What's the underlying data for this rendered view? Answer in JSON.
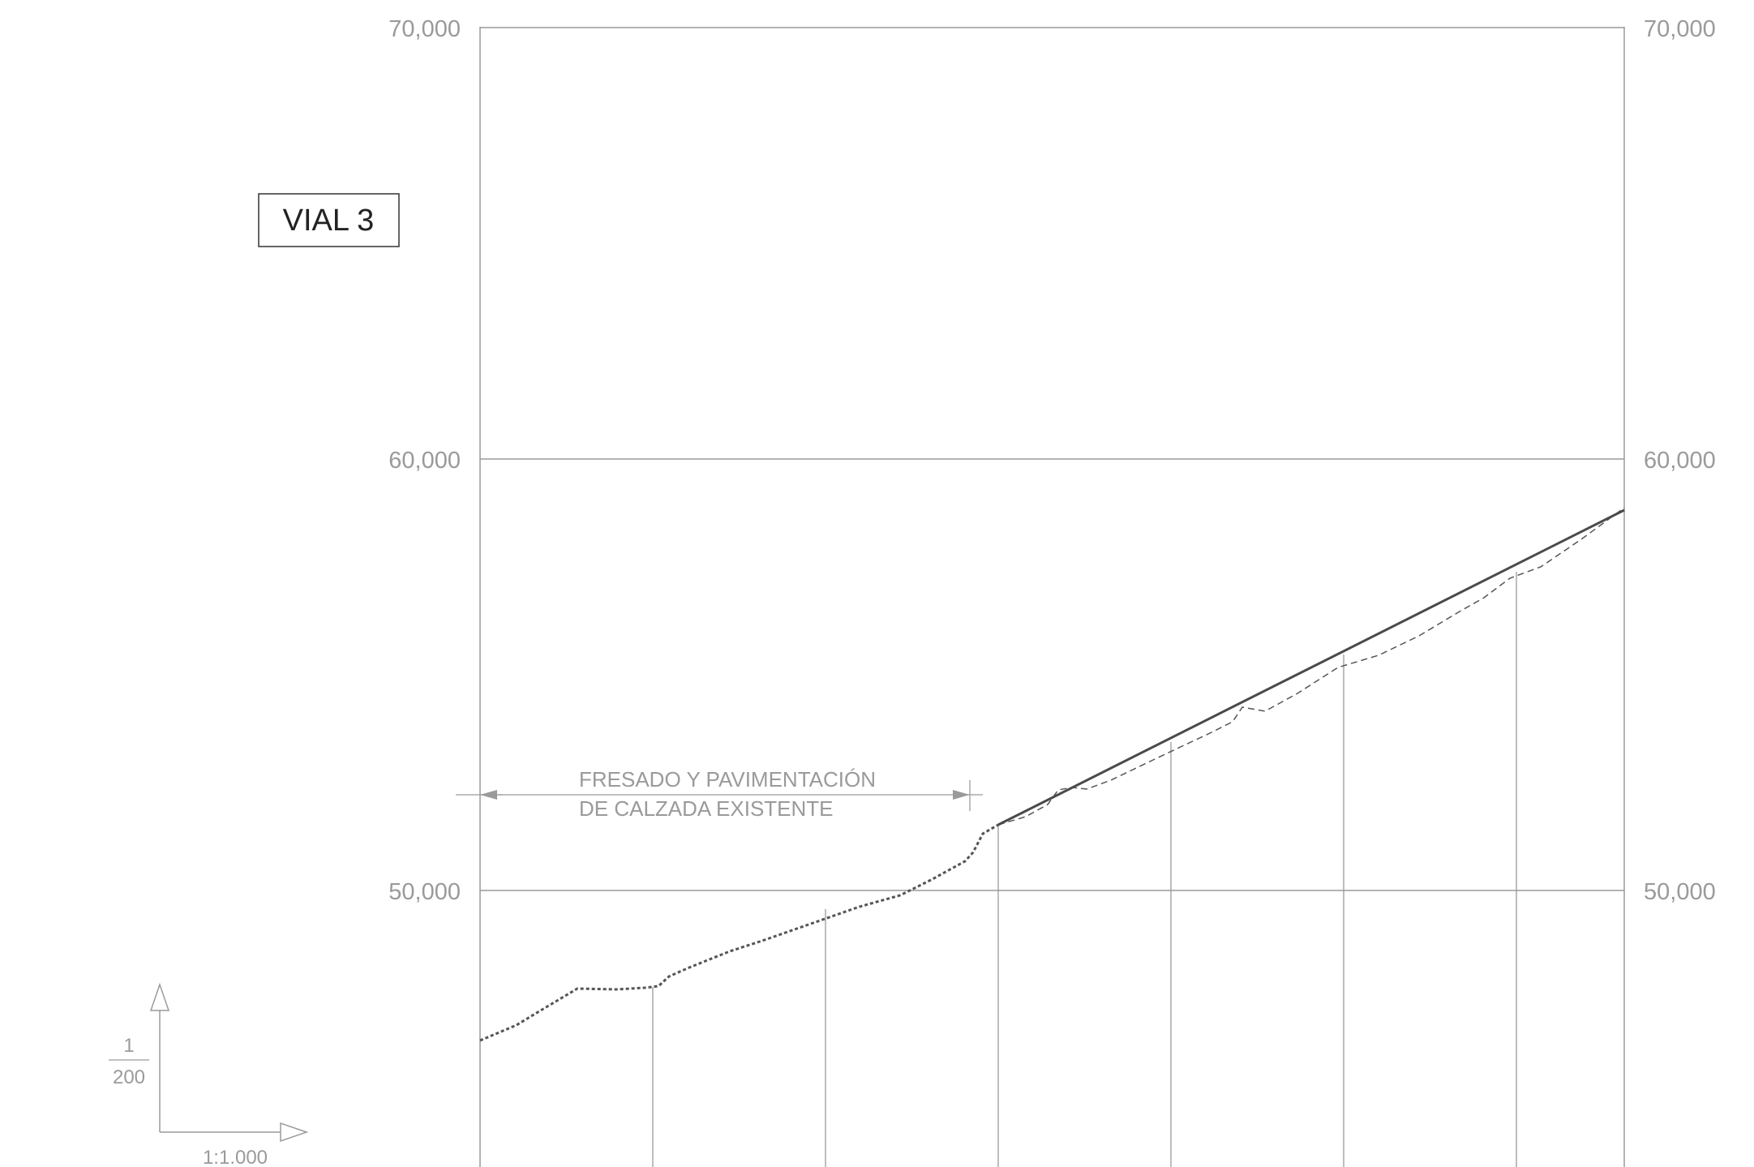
{
  "title": "VIAL 3",
  "elevation_axis": {
    "left_labels": [
      "70,000",
      "60,000",
      "50,000"
    ],
    "right_labels": [
      "70,000",
      "60,000",
      "50,000"
    ]
  },
  "annotation": {
    "line1": "FRESADO Y PAVIMENTACIÓN",
    "line2": "DE CALZADA EXISTENTE"
  },
  "scale": {
    "vertical_numerator": "1",
    "vertical_denominator": "200",
    "horizontal": "1:1.000"
  },
  "colors": {
    "grid": "#9a9a9a",
    "design_line": "#4a4a4a",
    "existing_ground": "#555555",
    "title_border": "#333333"
  },
  "chart_data": {
    "type": "line",
    "ylim": [
      46000,
      70000
    ],
    "series": [
      {
        "style": "dashed",
        "x": [
          0,
          100,
          200,
          400,
          600,
          750,
          830,
          890,
          1000,
          1200,
          1400,
          1550,
          1700,
          1800,
          1900,
          2000,
          2100,
          2300,
          2400,
          2500,
          2600,
          2650
        ],
        "values": [
          46550,
          46900,
          47250,
          47300,
          47350,
          47700,
          48050,
          48280,
          48650,
          49300,
          49900,
          50450,
          51000,
          51850,
          51900,
          52250,
          52800,
          53500,
          54250,
          55350,
          56300,
          57100
        ]
      },
      {
        "style": "solid",
        "x": [
          1200,
          2650
        ],
        "values": [
          51500,
          58800
        ]
      }
    ]
  }
}
